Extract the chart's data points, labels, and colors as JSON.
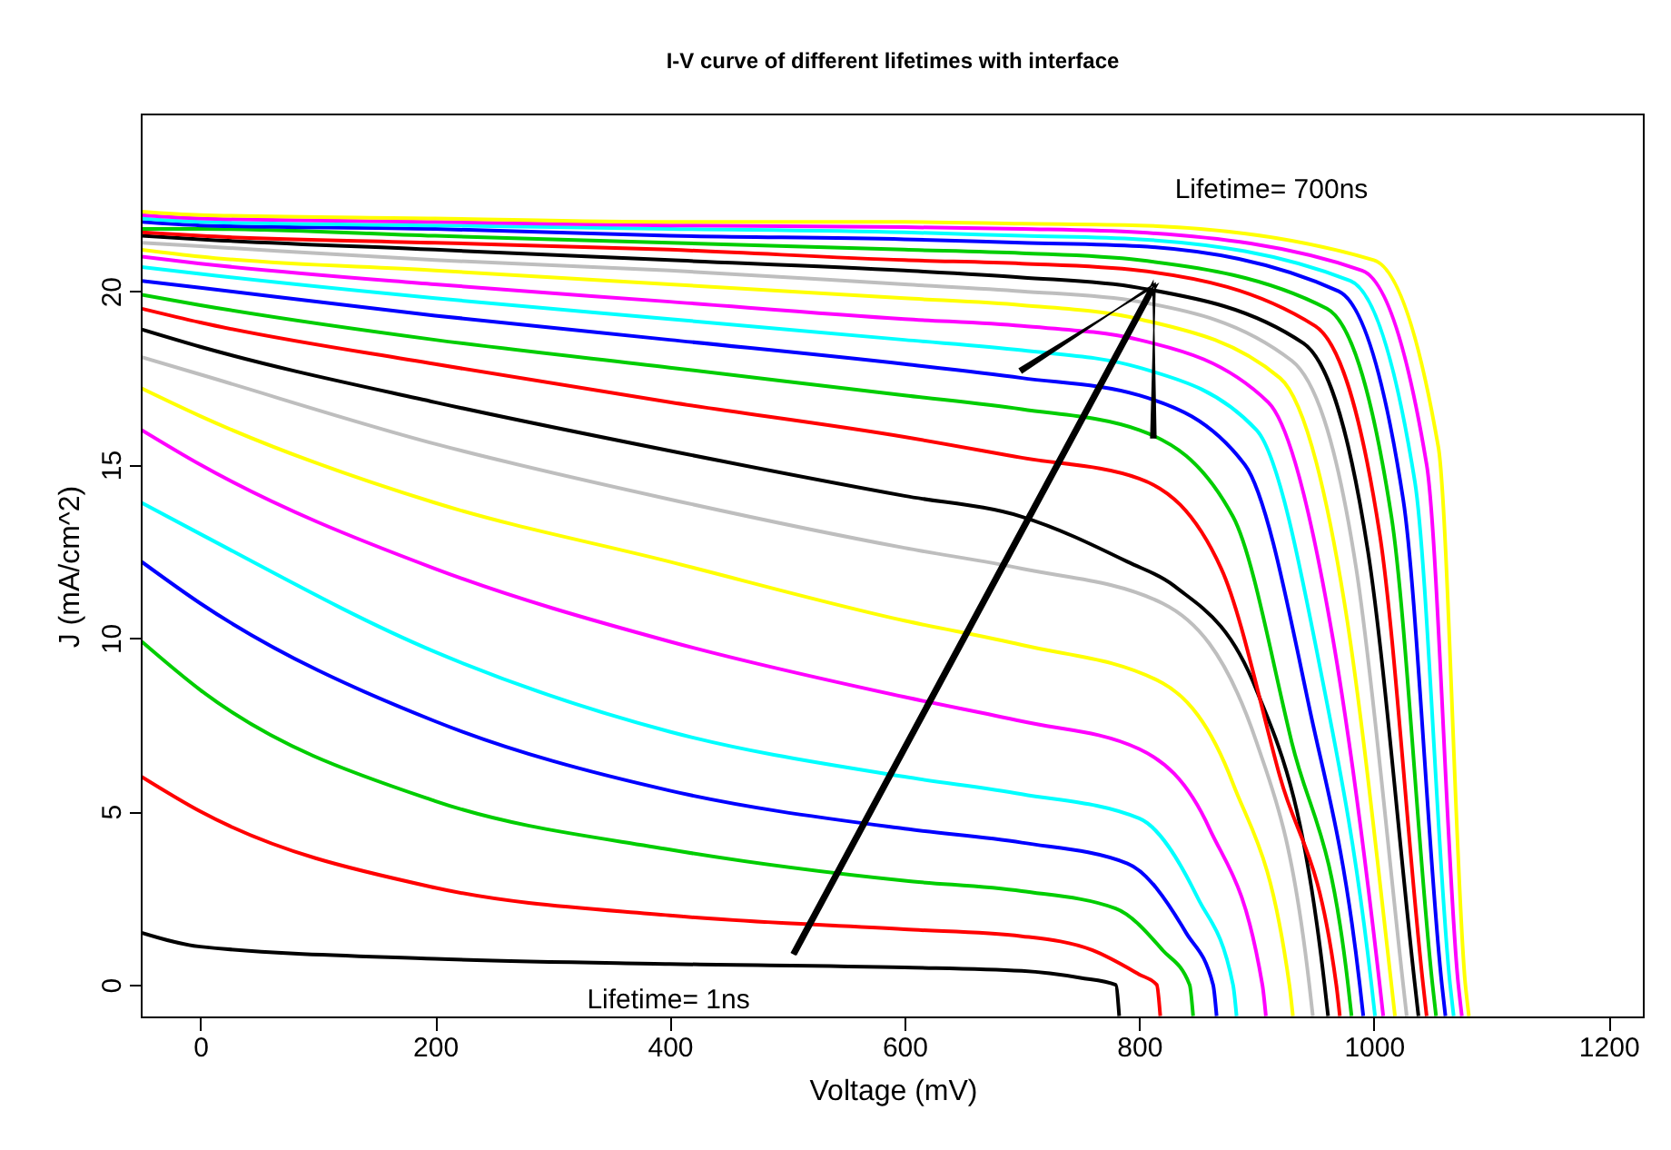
{
  "chart_data": {
    "type": "line",
    "title": "I-V curve of different lifetimes with interface",
    "xlabel": "Voltage (mV)",
    "ylabel": "J (mA/cm^2)",
    "xlim": [
      -50,
      1230
    ],
    "ylim": [
      -0.94,
      25.1
    ],
    "xticks": [
      0,
      200,
      400,
      600,
      800,
      1000,
      1200
    ],
    "yticks": [
      0,
      5,
      10,
      15,
      20
    ],
    "grid": false,
    "legend": false,
    "marker": "none",
    "line_style": "solid",
    "annotations": [
      "Lifetime= 700ns",
      "Lifetime= 1ns"
    ],
    "series": [
      {
        "color": "#000000",
        "x": [
          -50,
          0,
          200,
          400,
          600,
          700,
          750,
          780,
          783
        ],
        "values": [
          1.5,
          1.1,
          0.75,
          0.6,
          0.5,
          0.4,
          0.2,
          0,
          -0.9
        ]
      },
      {
        "color": "#ff0000",
        "x": [
          -50,
          0,
          200,
          400,
          600,
          700,
          760,
          800,
          815,
          818
        ],
        "values": [
          6,
          5,
          2.8,
          2.0,
          1.6,
          1.4,
          1.0,
          0.3,
          0,
          -0.9
        ]
      },
      {
        "color": "#00cd00",
        "x": [
          -50,
          0,
          200,
          400,
          600,
          700,
          780,
          820,
          843,
          846
        ],
        "values": [
          9.9,
          8.5,
          5.3,
          3.9,
          3.0,
          2.7,
          2.2,
          1.0,
          0,
          -0.9
        ]
      },
      {
        "color": "#0000ff",
        "x": [
          -50,
          0,
          200,
          400,
          600,
          700,
          790,
          840,
          863,
          866
        ],
        "values": [
          12.2,
          11,
          7.6,
          5.6,
          4.5,
          4.1,
          3.5,
          1.5,
          0,
          -0.9
        ]
      },
      {
        "color": "#00ffff",
        "x": [
          -50,
          0,
          200,
          400,
          600,
          700,
          800,
          850,
          880,
          883
        ],
        "values": [
          13.9,
          13,
          9.6,
          7.3,
          6.0,
          5.5,
          4.8,
          2.5,
          0,
          -0.9
        ]
      },
      {
        "color": "#ff00ff",
        "x": [
          -50,
          0,
          200,
          400,
          600,
          700,
          800,
          860,
          905,
          908
        ],
        "values": [
          16,
          15,
          12,
          9.9,
          8.3,
          7.6,
          6.8,
          4.5,
          0,
          -0.9
        ]
      },
      {
        "color": "#ffff00",
        "x": [
          -50,
          0,
          200,
          400,
          600,
          700,
          820,
          880,
          928,
          931
        ],
        "values": [
          17.2,
          16.4,
          13.9,
          12.2,
          10.5,
          9.8,
          8.7,
          5.8,
          0,
          -0.9
        ]
      },
      {
        "color": "#bebebe",
        "x": [
          -50,
          0,
          200,
          400,
          600,
          700,
          820,
          900,
          945,
          948
        ],
        "values": [
          18.1,
          17.6,
          15.6,
          14.0,
          12.6,
          12,
          11,
          7,
          0,
          -0.9
        ]
      },
      {
        "color": "#000000",
        "x": [
          -50,
          0,
          200,
          400,
          600,
          700,
          790,
          830,
          900,
          958,
          961
        ],
        "values": [
          18.9,
          18.4,
          16.8,
          15.4,
          14.1,
          13.5,
          12.2,
          11.5,
          8.5,
          0,
          -0.9
        ]
      },
      {
        "color": "#ff0000",
        "x": [
          -50,
          0,
          200,
          400,
          600,
          700,
          800,
          870,
          920,
          968,
          971
        ],
        "values": [
          19.5,
          19.1,
          17.9,
          16.8,
          15.8,
          15.2,
          14.6,
          12,
          6,
          0,
          -0.9
        ]
      },
      {
        "color": "#00cd00",
        "x": [
          -50,
          0,
          200,
          400,
          600,
          700,
          800,
          880,
          930,
          978,
          981
        ],
        "values": [
          19.9,
          19.6,
          18.6,
          17.8,
          17.0,
          16.6,
          16.0,
          13.5,
          7,
          0,
          -0.9
        ]
      },
      {
        "color": "#0000ff",
        "x": [
          -50,
          0,
          200,
          400,
          600,
          700,
          800,
          890,
          945,
          988,
          991
        ],
        "values": [
          20.3,
          20.1,
          19.3,
          18.6,
          17.9,
          17.5,
          17.0,
          15,
          8,
          0,
          -0.9
        ]
      },
      {
        "color": "#00ffff",
        "x": [
          -50,
          0,
          200,
          400,
          600,
          700,
          800,
          900,
          955,
          998,
          1001
        ],
        "values": [
          20.7,
          20.5,
          19.8,
          19.2,
          18.6,
          18.3,
          17.8,
          16,
          9,
          0,
          -0.9
        ]
      },
      {
        "color": "#ff00ff",
        "x": [
          -50,
          0,
          200,
          400,
          600,
          700,
          800,
          910,
          965,
          1005,
          1008
        ],
        "values": [
          21.0,
          20.8,
          20.2,
          19.7,
          19.2,
          19.0,
          18.6,
          16.8,
          10,
          0,
          -0.9
        ]
      },
      {
        "color": "#ffff00",
        "x": [
          -50,
          0,
          200,
          400,
          600,
          700,
          800,
          920,
          975,
          1015,
          1018
        ],
        "values": [
          21.2,
          21.0,
          20.6,
          20.2,
          19.8,
          19.6,
          19.2,
          17.5,
          11,
          0,
          -0.9
        ]
      },
      {
        "color": "#bebebe",
        "x": [
          -50,
          0,
          200,
          400,
          600,
          700,
          800,
          930,
          985,
          1025,
          1028
        ],
        "values": [
          21.4,
          21.3,
          20.9,
          20.6,
          20.2,
          20.0,
          19.7,
          18,
          12,
          0,
          -0.9
        ]
      },
      {
        "color": "#000000",
        "x": [
          -50,
          0,
          200,
          400,
          600,
          700,
          800,
          940,
          995,
          1035,
          1038
        ],
        "values": [
          21.6,
          21.5,
          21.2,
          20.9,
          20.6,
          20.4,
          20.1,
          18.5,
          12.5,
          0,
          -0.9
        ]
      },
      {
        "color": "#ff0000",
        "x": [
          -50,
          0,
          200,
          400,
          600,
          700,
          800,
          950,
          1005,
          1042,
          1045
        ],
        "values": [
          21.7,
          21.6,
          21.4,
          21.2,
          20.9,
          20.8,
          20.6,
          19,
          13,
          0,
          -0.9
        ]
      },
      {
        "color": "#00cd00",
        "x": [
          -50,
          0,
          200,
          400,
          600,
          700,
          800,
          960,
          1015,
          1050,
          1053
        ],
        "values": [
          21.8,
          21.8,
          21.6,
          21.4,
          21.2,
          21.1,
          20.9,
          19.5,
          13.5,
          0,
          -0.9
        ]
      },
      {
        "color": "#0000ff",
        "x": [
          -50,
          0,
          200,
          400,
          600,
          700,
          800,
          970,
          1025,
          1058,
          1061
        ],
        "values": [
          22.0,
          21.9,
          21.8,
          21.6,
          21.5,
          21.4,
          21.3,
          20,
          14,
          0,
          -0.9
        ]
      },
      {
        "color": "#00ffff",
        "x": [
          -50,
          0,
          200,
          400,
          600,
          700,
          800,
          980,
          1035,
          1065,
          1068
        ],
        "values": [
          22.1,
          22.0,
          21.9,
          21.8,
          21.7,
          21.6,
          21.5,
          20.3,
          14.5,
          0,
          -0.9
        ]
      },
      {
        "color": "#ff00ff",
        "x": [
          -50,
          0,
          200,
          400,
          600,
          700,
          800,
          990,
          1045,
          1072,
          1075
        ],
        "values": [
          22.2,
          22.1,
          22.0,
          21.9,
          21.85,
          21.8,
          21.7,
          20.6,
          15,
          0,
          -0.9
        ]
      },
      {
        "color": "#ffff00",
        "x": [
          -50,
          0,
          200,
          400,
          600,
          700,
          800,
          1000,
          1055,
          1078,
          1081
        ],
        "values": [
          22.3,
          22.2,
          22.1,
          22.0,
          22.0,
          21.95,
          21.9,
          20.9,
          15.5,
          0,
          -0.9
        ]
      }
    ]
  }
}
